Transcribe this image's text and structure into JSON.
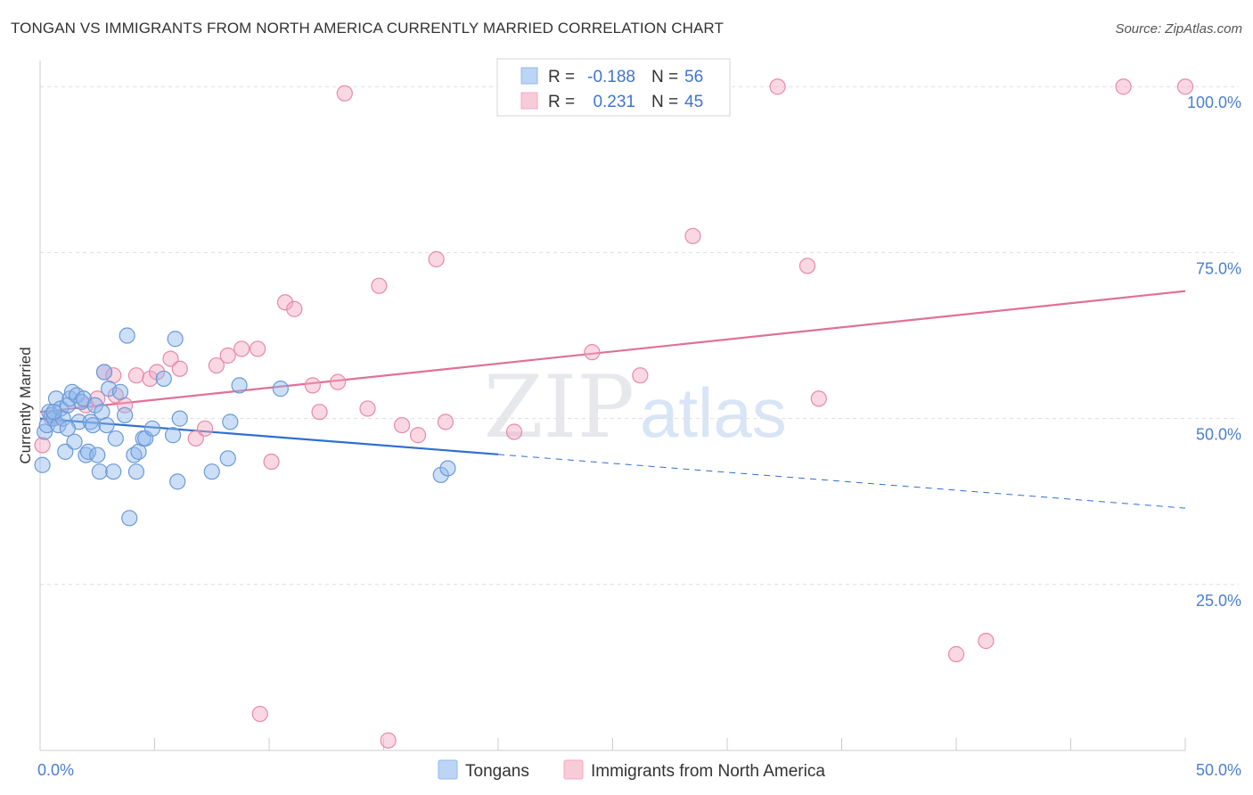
{
  "title": "TONGAN VS IMMIGRANTS FROM NORTH AMERICA CURRENTLY MARRIED CORRELATION CHART",
  "source": "Source: ZipAtlas.com",
  "watermark": {
    "zip": "ZIP",
    "atlas": "atlas"
  },
  "chart_data": {
    "type": "scatter",
    "ylabel": "Currently Married",
    "xlabel": "",
    "xlim": [
      0,
      50
    ],
    "ylim": [
      0,
      105
    ],
    "x_tick_labels": [
      "0.0%",
      "50.0%"
    ],
    "y_ticks": [
      {
        "value": 25,
        "label": "25.0%"
      },
      {
        "value": 50,
        "label": "50.0%"
      },
      {
        "value": 75,
        "label": "75.0%"
      },
      {
        "value": 100,
        "label": "100.0%"
      }
    ],
    "grid": "horizontal dashed",
    "legend_top": {
      "rows": [
        {
          "r_label": "R =",
          "r_value": "-0.188",
          "n_label": "N =",
          "n_value": "56",
          "color": "#90b8ee"
        },
        {
          "r_label": "R =",
          "r_value": "0.231",
          "n_label": "N =",
          "n_value": "45",
          "color": "#f4a8c0"
        }
      ]
    },
    "series": [
      {
        "name": "Tongans",
        "color": "#90b8ee",
        "stroke": "#6a9ad8",
        "trend": {
          "x0": 0,
          "y0": 50.0,
          "x1": 20,
          "y1": 44.6,
          "dash_to_x": 50,
          "dash_to_y": 36.5,
          "color": "#2f6fcf"
        },
        "points": [
          [
            0.1,
            43
          ],
          [
            0.2,
            48
          ],
          [
            0.3,
            49
          ],
          [
            0.4,
            51
          ],
          [
            0.5,
            50.5
          ],
          [
            0.6,
            50
          ],
          [
            0.7,
            53
          ],
          [
            0.8,
            49
          ],
          [
            0.9,
            51.5
          ],
          [
            1.0,
            50
          ],
          [
            1.1,
            45
          ],
          [
            1.2,
            52
          ],
          [
            1.3,
            53
          ],
          [
            1.4,
            54
          ],
          [
            1.5,
            46.5
          ],
          [
            1.6,
            53.5
          ],
          [
            1.7,
            49.5
          ],
          [
            1.8,
            52.5
          ],
          [
            1.9,
            53
          ],
          [
            2.0,
            44.5
          ],
          [
            2.1,
            45
          ],
          [
            2.2,
            49.5
          ],
          [
            2.3,
            49
          ],
          [
            2.4,
            52
          ],
          [
            2.5,
            44.5
          ],
          [
            2.6,
            42
          ],
          [
            2.7,
            51
          ],
          [
            2.8,
            57
          ],
          [
            3.0,
            54.5
          ],
          [
            3.2,
            42
          ],
          [
            3.3,
            47
          ],
          [
            3.5,
            54
          ],
          [
            3.7,
            50.5
          ],
          [
            3.8,
            62.5
          ],
          [
            3.9,
            35
          ],
          [
            4.1,
            44.5
          ],
          [
            4.2,
            42
          ],
          [
            4.3,
            45
          ],
          [
            4.5,
            47
          ],
          [
            4.6,
            47
          ],
          [
            4.9,
            48.5
          ],
          [
            5.4,
            56
          ],
          [
            5.8,
            47.5
          ],
          [
            5.9,
            62
          ],
          [
            6.0,
            40.5
          ],
          [
            6.1,
            50
          ],
          [
            7.5,
            42
          ],
          [
            8.2,
            44
          ],
          [
            8.3,
            49.5
          ],
          [
            8.7,
            55
          ],
          [
            10.5,
            54.5
          ],
          [
            17.5,
            41.5
          ],
          [
            17.8,
            42.5
          ],
          [
            1.2,
            48.5
          ],
          [
            2.9,
            49
          ],
          [
            0.6,
            51
          ]
        ]
      },
      {
        "name": "Immigrants from North America",
        "color": "#f4a8c0",
        "stroke": "#e889a8",
        "trend": {
          "x0": 0,
          "y0": 51.0,
          "x1": 50,
          "y1": 69.2,
          "color": "#e07098"
        },
        "points": [
          [
            0.1,
            46
          ],
          [
            0.5,
            50
          ],
          [
            2.0,
            52
          ],
          [
            2.5,
            53
          ],
          [
            2.8,
            57
          ],
          [
            3.2,
            56.5
          ],
          [
            3.3,
            53.5
          ],
          [
            3.7,
            52
          ],
          [
            4.2,
            56.5
          ],
          [
            4.8,
            56
          ],
          [
            5.1,
            57
          ],
          [
            5.7,
            59
          ],
          [
            6.1,
            57.5
          ],
          [
            6.8,
            47
          ],
          [
            7.2,
            48.5
          ],
          [
            7.7,
            58
          ],
          [
            8.2,
            59.5
          ],
          [
            8.8,
            60.5
          ],
          [
            9.5,
            60.5
          ],
          [
            10.1,
            43.5
          ],
          [
            10.7,
            67.5
          ],
          [
            11.1,
            66.5
          ],
          [
            11.9,
            55
          ],
          [
            12.2,
            51
          ],
          [
            13.0,
            55.5
          ],
          [
            13.3,
            99
          ],
          [
            14.3,
            51.5
          ],
          [
            14.8,
            70
          ],
          [
            15.2,
            1.5
          ],
          [
            15.8,
            49
          ],
          [
            16.5,
            47.5
          ],
          [
            17.3,
            74
          ],
          [
            17.7,
            49.5
          ],
          [
            20.7,
            48
          ],
          [
            24.1,
            60
          ],
          [
            26.2,
            56.5
          ],
          [
            28.5,
            77.5
          ],
          [
            32.2,
            100
          ],
          [
            33.5,
            73
          ],
          [
            34.0,
            53
          ],
          [
            40.0,
            14.5
          ],
          [
            41.3,
            16.5
          ],
          [
            47.3,
            100
          ],
          [
            50.0,
            100
          ],
          [
            9.6,
            5.5
          ]
        ]
      }
    ]
  },
  "legend_bottom": [
    {
      "name": "Tongans",
      "color": "#90b8ee"
    },
    {
      "name": "Immigrants from North America",
      "color": "#f4a8c0"
    }
  ]
}
